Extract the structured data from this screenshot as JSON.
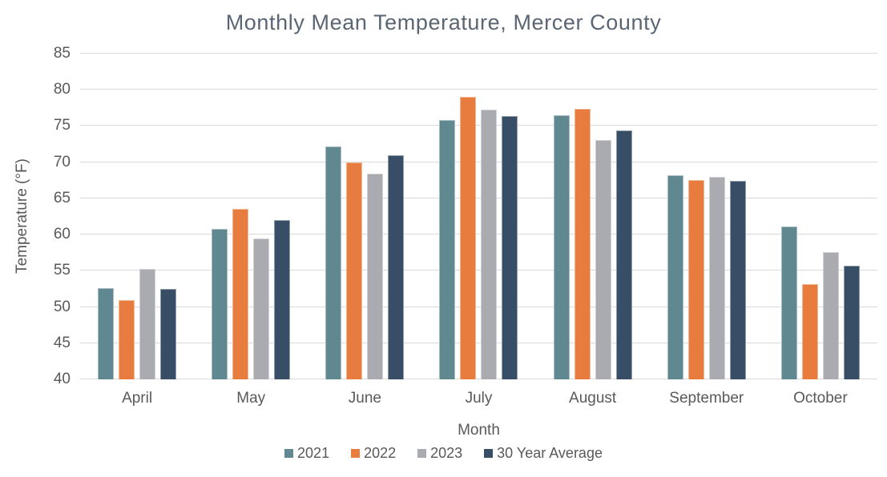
{
  "chart_data": {
    "type": "bar",
    "title": "Monthly Mean Temperature, Mercer County",
    "xlabel": "Month",
    "ylabel": "Temperature (°F)",
    "ylim": [
      40,
      85
    ],
    "ytick_step": 5,
    "yticks": [
      40,
      45,
      50,
      55,
      60,
      65,
      70,
      75,
      80,
      85
    ],
    "grid": true,
    "legend_position": "bottom",
    "categories": [
      "April",
      "May",
      "June",
      "July",
      "August",
      "September",
      "October"
    ],
    "series": [
      {
        "name": "2021",
        "color": "#5F8891",
        "values": [
          52.6,
          60.8,
          72.2,
          75.8,
          76.5,
          68.2,
          61.1
        ]
      },
      {
        "name": "2022",
        "color": "#E87C3E",
        "values": [
          51.0,
          63.5,
          70.0,
          79.0,
          77.4,
          67.5,
          53.2
        ]
      },
      {
        "name": "2023",
        "color": "#AAABB1",
        "values": [
          55.3,
          59.5,
          68.4,
          77.3,
          73.1,
          68.0,
          57.6
        ]
      },
      {
        "name": "30 Year Average",
        "color": "#384E66",
        "values": [
          52.5,
          62.0,
          71.0,
          76.4,
          74.4,
          67.4,
          55.7
        ]
      }
    ]
  },
  "colors": {
    "title_text": "#5A6673",
    "axis_text": "#595959",
    "gridline": "#D9D9D9",
    "background": "#FFFFFF"
  }
}
